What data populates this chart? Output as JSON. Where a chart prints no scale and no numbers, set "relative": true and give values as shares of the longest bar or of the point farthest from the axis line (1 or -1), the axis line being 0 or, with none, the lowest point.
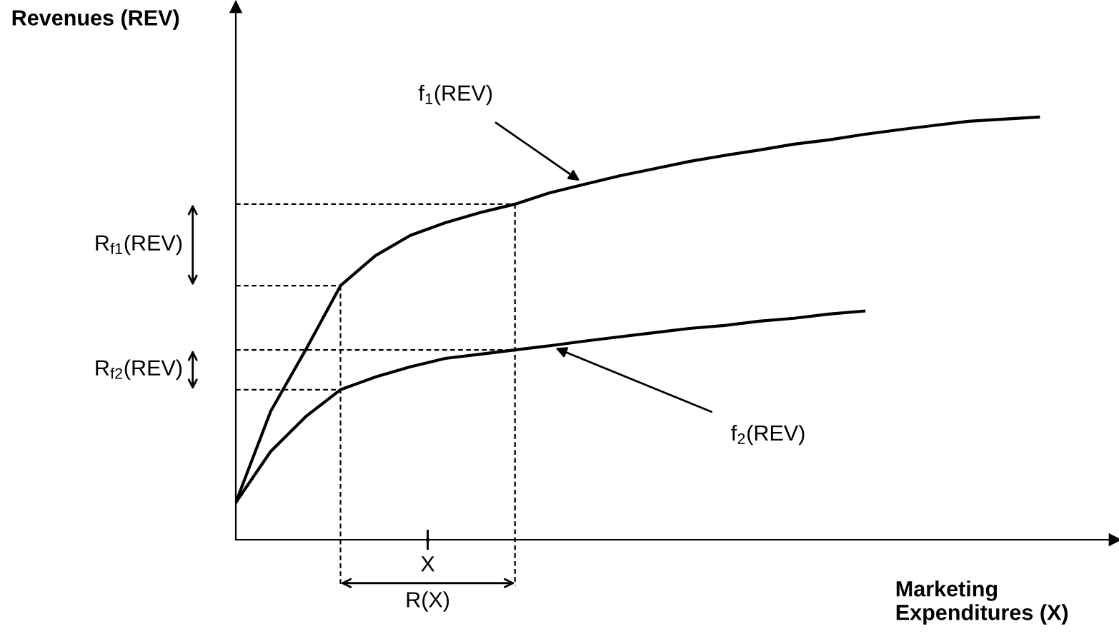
{
  "chart_data": {
    "type": "line",
    "relative": true,
    "xlabel": "Marketing\nExpenditures (X)",
    "ylabel": "Revenues (REV)",
    "categories": [
      null,
      null,
      null,
      null,
      null,
      null,
      null,
      null,
      null,
      null,
      null,
      null,
      null,
      null,
      null,
      null,
      null,
      null,
      null,
      null,
      null,
      null,
      null,
      null
    ],
    "series": [
      {
        "color": "#000000",
        "values": [
          0.088,
          0.304,
          0.449,
          0.601,
          0.672,
          0.72,
          0.75,
          0.774,
          0.794,
          0.821,
          0.841,
          0.861,
          0.878,
          0.895,
          0.909,
          0.922,
          0.936,
          0.946,
          0.959,
          0.97,
          0.98,
          0.99,
          0.995,
          1.0
        ]
      },
      {
        "color": "#000000",
        "values": [
          0.088,
          0.209,
          0.291,
          0.355,
          0.385,
          0.409,
          0.429,
          0.439,
          0.449,
          0.459,
          0.47,
          0.48,
          0.49,
          0.5,
          0.507,
          0.517,
          0.524,
          0.534,
          0.541,
          null,
          null,
          null,
          null,
          null
        ]
      }
    ],
    "ref_lines": [
      {
        "axis": "y",
        "value": 0.601,
        "line_style": "dashed"
      },
      {
        "axis": "y",
        "value": 0.794,
        "line_style": "dashed"
      },
      {
        "axis": "y",
        "value": 0.355,
        "line_style": "dashed"
      },
      {
        "axis": "y",
        "value": 0.449,
        "line_style": "dashed"
      }
    ],
    "annotations": [
      "f$_{1}$(REV)",
      "f$_{2}$(REV)",
      "X",
      "R(X)",
      "R$_{f1}$(REV)",
      "R$_{f2}$(REV)"
    ]
  }
}
